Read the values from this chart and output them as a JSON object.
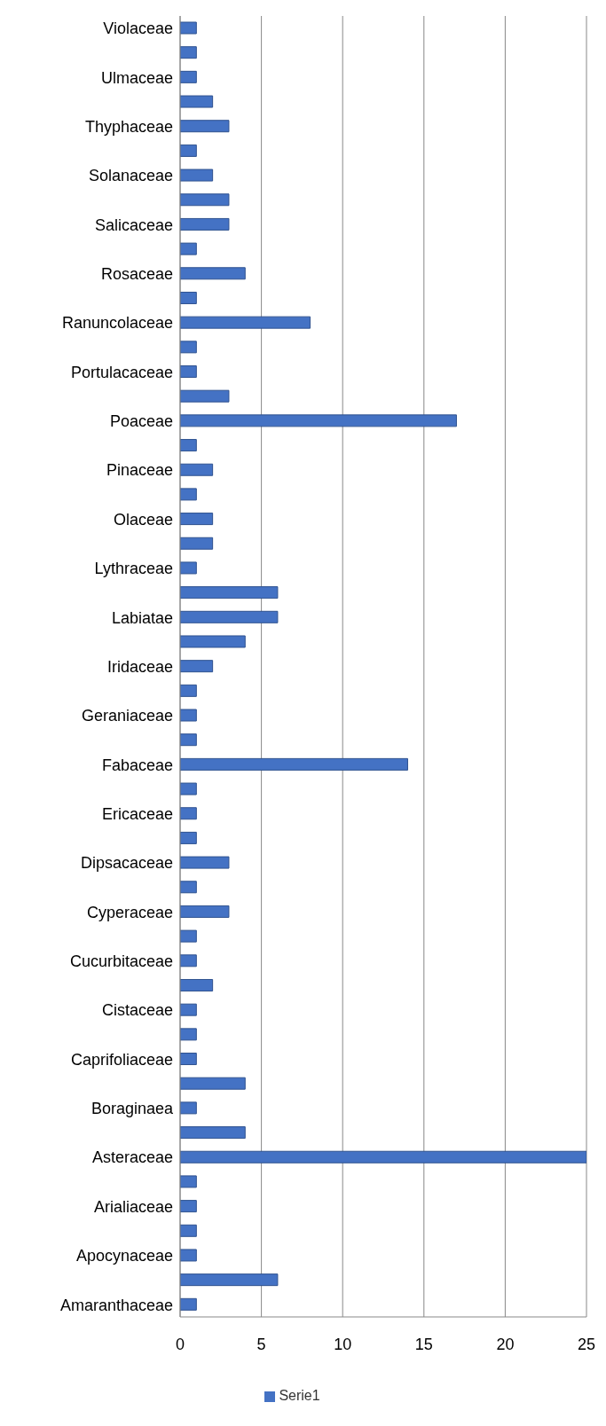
{
  "chart_data": {
    "type": "bar",
    "orientation": "horizontal",
    "categories": [
      "Violaceae",
      null,
      "Ulmaceae",
      null,
      "Thyphaceae",
      null,
      "Solanaceae",
      null,
      "Salicaceae",
      null,
      "Rosaceae",
      null,
      "Ranuncolaceae",
      null,
      "Portulacaceae",
      null,
      "Poaceae",
      null,
      "Pinaceae",
      null,
      "Olaceae",
      null,
      "Lythraceae",
      null,
      "Labiatae",
      null,
      "Iridaceae",
      null,
      "Geraniaceae",
      null,
      "Fabaceae",
      null,
      "Ericaceae",
      null,
      "Dipsacaceae",
      null,
      "Cyperaceae",
      null,
      "Cucurbitaceae",
      null,
      "Cistaceae",
      null,
      "Caprifoliaceae",
      null,
      "Boraginaea",
      null,
      "Asteraceae",
      null,
      "Arialiaceae",
      null,
      "Apocynaceae",
      null,
      "Amaranthaceae"
    ],
    "series": [
      {
        "name": "Serie1",
        "color": "#4472c4",
        "values": [
          1,
          1,
          1,
          2,
          3,
          1,
          2,
          3,
          3,
          1,
          4,
          1,
          8,
          1,
          1,
          3,
          17,
          1,
          2,
          1,
          2,
          2,
          1,
          6,
          6,
          4,
          2,
          1,
          1,
          1,
          14,
          1,
          1,
          1,
          3,
          1,
          3,
          1,
          1,
          2,
          1,
          1,
          1,
          4,
          1,
          4,
          25,
          1,
          1,
          1,
          1,
          6,
          1
        ]
      }
    ],
    "xlim": [
      0,
      25
    ],
    "xticks": [
      0,
      5,
      10,
      15,
      20,
      25
    ],
    "grid": "x",
    "legend": "bottom"
  }
}
